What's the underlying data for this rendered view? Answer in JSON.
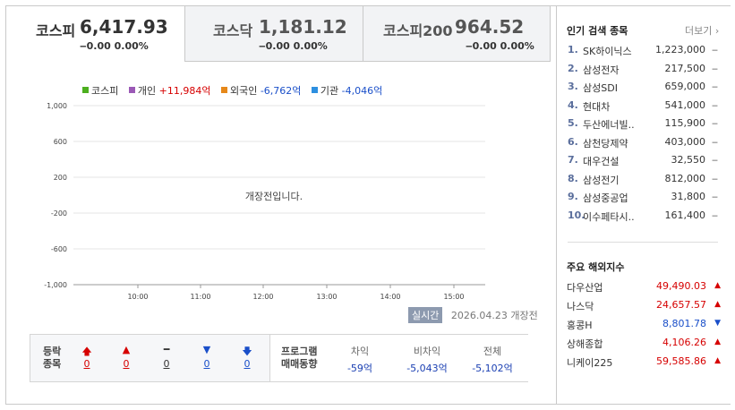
{
  "tabs": [
    {
      "name": "코스피",
      "value": "6,417.93",
      "change": "‒0.00 0.00%"
    },
    {
      "name": "코스닥",
      "value": "1,181.12",
      "change": "‒0.00 0.00%"
    },
    {
      "name": "코스피200",
      "value": "964.52",
      "change": "‒0.00 0.00%"
    }
  ],
  "legend": [
    {
      "label": "코스피",
      "value": "",
      "color": "#4caf1f",
      "value_color": "#333"
    },
    {
      "label": "개인",
      "value": "+11,984억",
      "color": "#9b59b6",
      "value_color": "#d60000"
    },
    {
      "label": "외국인",
      "value": "-6,762억",
      "color": "#e6881a",
      "value_color": "#1a3fb2"
    },
    {
      "label": "기관",
      "value": "-4,046억",
      "color": "#2d8fe0",
      "value_color": "#1a3fb2"
    }
  ],
  "chart_data": {
    "type": "line",
    "y_ticks": [
      "1,000",
      "600",
      "200",
      "-200",
      "-600",
      "-1,000"
    ],
    "x_ticks": [
      "10:00",
      "11:00",
      "12:00",
      "13:00",
      "14:00",
      "15:00"
    ],
    "ylim": [
      -1000,
      1000
    ],
    "grid": true,
    "message": "개장전입니다.",
    "series": []
  },
  "status": {
    "badge": "실시간",
    "date": "2026.04.23",
    "state": "개장전"
  },
  "bottom": {
    "label_line1": "등락",
    "label_line2": "종목",
    "counts": [
      "0",
      "0",
      "0",
      "0",
      "0"
    ],
    "program_line1": "프로그램",
    "program_line2": "매매동향",
    "program": [
      {
        "head": "차익",
        "value": "-59억"
      },
      {
        "head": "비차익",
        "value": "-5,043억"
      },
      {
        "head": "전체",
        "value": "-5,102억"
      }
    ]
  },
  "side": {
    "popular_title": "인기 검색 종목",
    "more": "더보기",
    "popular": [
      {
        "no": "1.",
        "name": "SK하이닉스",
        "price": "1,223,000",
        "chg": "‒"
      },
      {
        "no": "2.",
        "name": "삼성전자",
        "price": "217,500",
        "chg": "‒"
      },
      {
        "no": "3.",
        "name": "삼성SDI",
        "price": "659,000",
        "chg": "‒"
      },
      {
        "no": "4.",
        "name": "현대차",
        "price": "541,000",
        "chg": "‒"
      },
      {
        "no": "5.",
        "name": "두산에너빌..",
        "price": "115,900",
        "chg": "‒"
      },
      {
        "no": "6.",
        "name": "삼천당제약",
        "price": "403,000",
        "chg": "‒"
      },
      {
        "no": "7.",
        "name": "대우건설",
        "price": "32,550",
        "chg": "‒"
      },
      {
        "no": "8.",
        "name": "삼성전기",
        "price": "812,000",
        "chg": "‒"
      },
      {
        "no": "9.",
        "name": "삼성중공업",
        "price": "31,800",
        "chg": "‒"
      },
      {
        "no": "10.",
        "name": "이수페타시..",
        "price": "161,400",
        "chg": "‒"
      }
    ],
    "world_title": "주요 해외지수",
    "world": [
      {
        "name": "다우산업",
        "value": "49,490.03",
        "dir": "up"
      },
      {
        "name": "나스닥",
        "value": "24,657.57",
        "dir": "up"
      },
      {
        "name": "홍콩H",
        "value": "8,801.78",
        "dir": "down"
      },
      {
        "name": "상해종합",
        "value": "4,106.26",
        "dir": "up"
      },
      {
        "name": "니케이225",
        "value": "59,585.86",
        "dir": "up"
      }
    ]
  }
}
